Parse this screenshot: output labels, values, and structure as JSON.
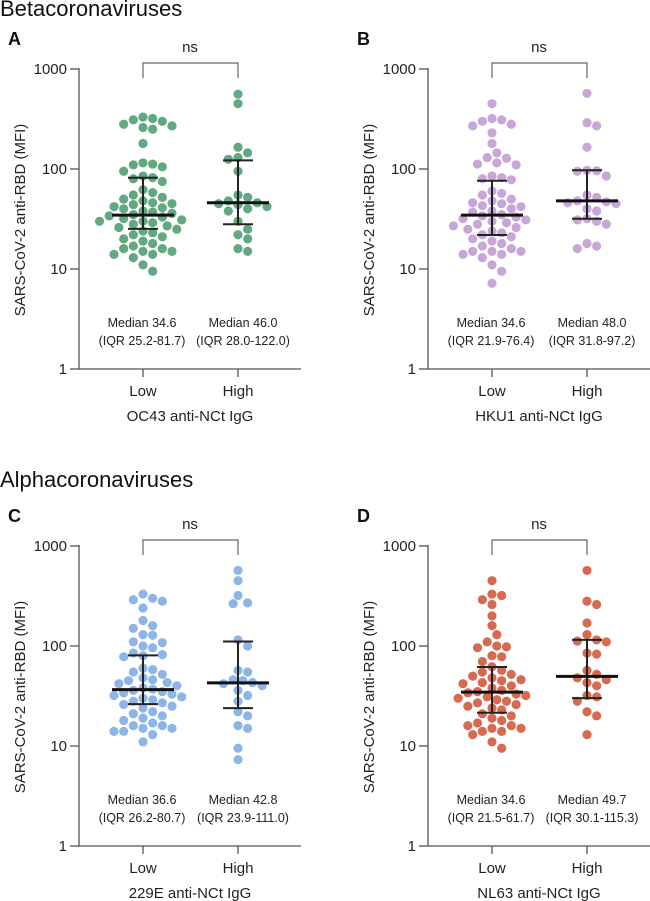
{
  "sections": [
    "Betacoronaviruses",
    "Alphacoronaviruses"
  ],
  "chart_data": [
    {
      "type": "scatter",
      "panel": "A",
      "section": 0,
      "color": "#62a880",
      "ylabel": "SARS-CoV-2 anti-RBD (MFI)",
      "xlabel": "OC43 anti-NCt IgG",
      "yscale": "log",
      "ylim": [
        1,
        1000
      ],
      "yticks": [
        "1",
        "10",
        "100",
        "1000"
      ],
      "categories": [
        "Low",
        "High"
      ],
      "significance": "ns",
      "groups": [
        {
          "name": "Low",
          "median": 34.6,
          "iqr": [
            25.2,
            81.7
          ],
          "median_text": "Median 34.6",
          "iqr_text": "(IQR 25.2-81.7)",
          "values": [
            320,
            300,
            330,
            310,
            280,
            270,
            250,
            260,
            180,
            115,
            110,
            112,
            105,
            95,
            85,
            82,
            80,
            75,
            62,
            58,
            55,
            52,
            50,
            48,
            46,
            45,
            44,
            42,
            41,
            40,
            38,
            37,
            36,
            35,
            34,
            33,
            32,
            31,
            30,
            30,
            29,
            28,
            27,
            26,
            25,
            24,
            23,
            22,
            21,
            20,
            19,
            18,
            17,
            16,
            16,
            15,
            15,
            14,
            14,
            13,
            11,
            9.5
          ]
        },
        {
          "name": "High",
          "median": 46.0,
          "iqr": [
            28.0,
            122.0
          ],
          "median_text": "Median 46.0",
          "iqr_text": "(IQR 28.0-122.0)",
          "values": [
            560,
            450,
            165,
            145,
            130,
            125,
            95,
            55,
            52,
            48,
            46,
            45,
            44,
            42,
            40,
            38,
            30,
            25,
            22,
            20,
            16,
            15
          ]
        }
      ]
    },
    {
      "type": "scatter",
      "panel": "B",
      "section": 0,
      "color": "#c8a6d8",
      "ylabel": "SARS-CoV-2 anti-RBD (MFI)",
      "xlabel": "HKU1 anti-NCt IgG",
      "yscale": "log",
      "ylim": [
        1,
        1000
      ],
      "yticks": [
        "1",
        "10",
        "100",
        "1000"
      ],
      "categories": [
        "Low",
        "High"
      ],
      "significance": "ns",
      "groups": [
        {
          "name": "Low",
          "median": 34.6,
          "iqr": [
            21.9,
            76.4
          ],
          "median_text": "Median 34.6",
          "iqr_text": "(IQR 21.9-76.4)",
          "values": [
            450,
            320,
            300,
            310,
            270,
            280,
            230,
            180,
            145,
            130,
            128,
            115,
            110,
            112,
            85,
            82,
            80,
            78,
            60,
            57,
            55,
            50,
            48,
            46,
            45,
            43,
            42,
            40,
            38,
            37,
            35,
            34,
            33,
            32,
            31,
            30,
            29,
            28,
            27,
            26,
            25,
            24,
            23,
            22,
            21,
            20,
            19,
            18,
            17,
            16,
            15,
            15,
            15,
            14,
            14,
            13,
            11,
            9.5,
            7.2
          ]
        },
        {
          "name": "High",
          "median": 48.0,
          "iqr": [
            31.8,
            97.2
          ],
          "median_text": "Median 48.0",
          "iqr_text": "(IQR 31.8-97.2)",
          "values": [
            570,
            290,
            270,
            165,
            97,
            96,
            95,
            85,
            55,
            52,
            48,
            47,
            46,
            45,
            40,
            38,
            32,
            31,
            30,
            28,
            18,
            17,
            16
          ]
        }
      ]
    },
    {
      "type": "scatter",
      "panel": "C",
      "section": 1,
      "color": "#8db6e6",
      "ylabel": "SARS-CoV-2 anti-RBD (MFI)",
      "xlabel": "229E anti-NCt IgG",
      "yscale": "log",
      "ylim": [
        1,
        1000
      ],
      "yticks": [
        "1",
        "10",
        "100",
        "1000"
      ],
      "categories": [
        "Low",
        "High"
      ],
      "significance": "ns",
      "groups": [
        {
          "name": "Low",
          "median": 36.6,
          "iqr": [
            26.2,
            80.7
          ],
          "median_text": "Median 36.6",
          "iqr_text": "(IQR 26.2-80.7)",
          "values": [
            330,
            300,
            290,
            280,
            240,
            180,
            160,
            150,
            130,
            128,
            110,
            108,
            100,
            96,
            85,
            82,
            80,
            78,
            60,
            58,
            55,
            52,
            48,
            46,
            45,
            43,
            42,
            40,
            38,
            37,
            36,
            35,
            34,
            33,
            32,
            31,
            30,
            29,
            28,
            27,
            26,
            25,
            24,
            22,
            21,
            20,
            19,
            18,
            17,
            16,
            16,
            15,
            15,
            14,
            14,
            13,
            11
          ]
        },
        {
          "name": "High",
          "median": 42.8,
          "iqr": [
            23.9,
            111.0
          ],
          "median_text": "Median 42.8",
          "iqr_text": "(IQR 23.9-111.0)",
          "values": [
            570,
            450,
            320,
            270,
            265,
            115,
            100,
            57,
            55,
            46,
            45,
            43,
            42,
            40,
            36,
            32,
            28,
            22,
            20,
            16,
            15,
            9.5,
            7.3
          ]
        }
      ]
    },
    {
      "type": "scatter",
      "panel": "D",
      "section": 1,
      "color": "#d66b52",
      "ylabel": "SARS-CoV-2 anti-RBD (MFI)",
      "xlabel": "NL63 anti-NCt IgG",
      "yscale": "log",
      "ylim": [
        1,
        1000
      ],
      "yticks": [
        "1",
        "10",
        "100",
        "1000"
      ],
      "categories": [
        "Low",
        "High"
      ],
      "significance": "ns",
      "groups": [
        {
          "name": "Low",
          "median": 34.6,
          "iqr": [
            21.5,
            61.7
          ],
          "median_text": "Median 34.6",
          "iqr_text": "(IQR 21.5-61.7)",
          "values": [
            450,
            330,
            320,
            290,
            260,
            200,
            160,
            130,
            110,
            100,
            98,
            96,
            80,
            78,
            70,
            62,
            57,
            55,
            52,
            50,
            48,
            46,
            45,
            43,
            42,
            40,
            38,
            36,
            35,
            34,
            33,
            32,
            31,
            30,
            29,
            28,
            27,
            26,
            25,
            24,
            23,
            21,
            20,
            19,
            18,
            17,
            16,
            16,
            15,
            15,
            14,
            14,
            13,
            11,
            9.5
          ]
        },
        {
          "name": "High",
          "median": 49.7,
          "iqr": [
            30.1,
            115.3
          ],
          "median_text": "Median 49.7",
          "iqr_text": "(IQR 30.1-115.3)",
          "values": [
            570,
            280,
            260,
            170,
            130,
            115,
            112,
            110,
            85,
            83,
            57,
            52,
            48,
            46,
            43,
            40,
            32,
            31,
            28,
            22,
            20,
            13
          ]
        }
      ]
    }
  ]
}
